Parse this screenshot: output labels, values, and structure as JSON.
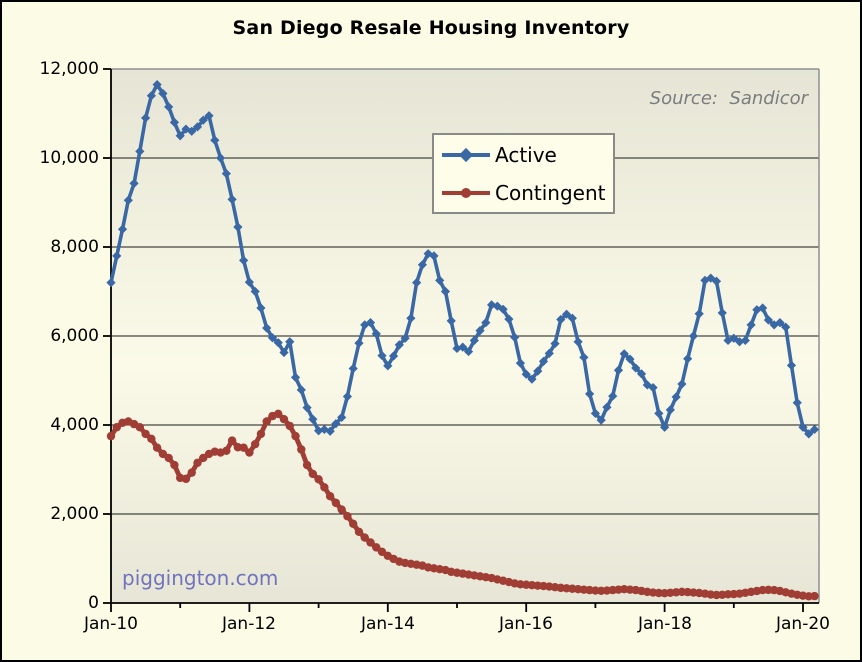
{
  "chart_data": {
    "type": "line",
    "title": "San Diego Resale Housing Inventory",
    "source_note": "Source:  Sandicor",
    "watermark": "piggington.com",
    "watermark_color": "#7173BE",
    "x_axis": {
      "start_month": "Jan-10",
      "end_month": "Mar-20",
      "step": "1 month",
      "point_count": 123,
      "tick_interval": "1 year",
      "labeled_tick_interval": "2 years"
    },
    "x_tick_labels": [
      "Jan-10",
      "Jan-12",
      "Jan-14",
      "Jan-16",
      "Jan-18",
      "Jan-20"
    ],
    "y_ticks": [
      0,
      2000,
      4000,
      6000,
      8000,
      10000,
      12000
    ],
    "y_tick_labels": [
      "0",
      "2,000",
      "4,000",
      "6,000",
      "8,000",
      "10,000",
      "12,000"
    ],
    "ylim": [
      0,
      12000
    ],
    "grid": "horizontal",
    "legend_position": "upper-center",
    "plot_bg": [
      "#E6E5D5",
      "#FBFAE8",
      "#E7E6D6"
    ],
    "series": [
      {
        "name": "Active",
        "color": "#3A68A5",
        "marker": "diamond",
        "values": [
          7200,
          7800,
          8400,
          9050,
          9430,
          10150,
          10900,
          11400,
          11650,
          11450,
          11150,
          10800,
          10500,
          10650,
          10600,
          10700,
          10850,
          10950,
          10400,
          10000,
          9650,
          9070,
          8450,
          7700,
          7210,
          7000,
          6630,
          6180,
          5960,
          5850,
          5630,
          5870,
          5070,
          4790,
          4390,
          4130,
          3870,
          3900,
          3860,
          4030,
          4170,
          4640,
          5270,
          5840,
          6250,
          6300,
          6050,
          5560,
          5330,
          5550,
          5800,
          5950,
          6400,
          7200,
          7600,
          7850,
          7800,
          7250,
          7000,
          6340,
          5720,
          5750,
          5650,
          5900,
          6120,
          6300,
          6700,
          6670,
          6600,
          6380,
          5970,
          5390,
          5140,
          5030,
          5210,
          5430,
          5610,
          5830,
          6370,
          6490,
          6400,
          5870,
          5520,
          4700,
          4260,
          4110,
          4400,
          4650,
          5230,
          5600,
          5480,
          5280,
          5150,
          4900,
          4840,
          4260,
          3950,
          4340,
          4630,
          4920,
          5490,
          6000,
          6500,
          7250,
          7300,
          7230,
          6520,
          5900,
          5950,
          5870,
          5900,
          6250,
          6590,
          6630,
          6360,
          6250,
          6300,
          6200,
          5340,
          4500,
          3950,
          3800,
          3900
        ]
      },
      {
        "name": "Contingent",
        "color": "#A03E35",
        "marker": "circle",
        "values": [
          3750,
          3950,
          4050,
          4080,
          4020,
          3950,
          3800,
          3690,
          3490,
          3350,
          3260,
          3100,
          2810,
          2790,
          2930,
          3150,
          3260,
          3350,
          3400,
          3380,
          3420,
          3650,
          3500,
          3490,
          3380,
          3570,
          3800,
          4080,
          4200,
          4250,
          4130,
          3980,
          3750,
          3450,
          3100,
          2900,
          2780,
          2600,
          2400,
          2250,
          2100,
          1950,
          1780,
          1600,
          1470,
          1360,
          1250,
          1150,
          1060,
          990,
          930,
          900,
          880,
          860,
          840,
          800,
          780,
          760,
          740,
          700,
          680,
          660,
          640,
          620,
          600,
          580,
          560,
          530,
          500,
          470,
          440,
          420,
          410,
          400,
          390,
          380,
          370,
          355,
          340,
          330,
          320,
          310,
          300,
          290,
          280,
          275,
          280,
          290,
          300,
          310,
          300,
          290,
          270,
          250,
          235,
          225,
          220,
          230,
          240,
          250,
          245,
          235,
          225,
          210,
          190,
          180,
          185,
          195,
          200,
          210,
          230,
          250,
          270,
          290,
          295,
          290,
          270,
          240,
          210,
          185,
          165,
          150,
          155
        ]
      }
    ]
  }
}
